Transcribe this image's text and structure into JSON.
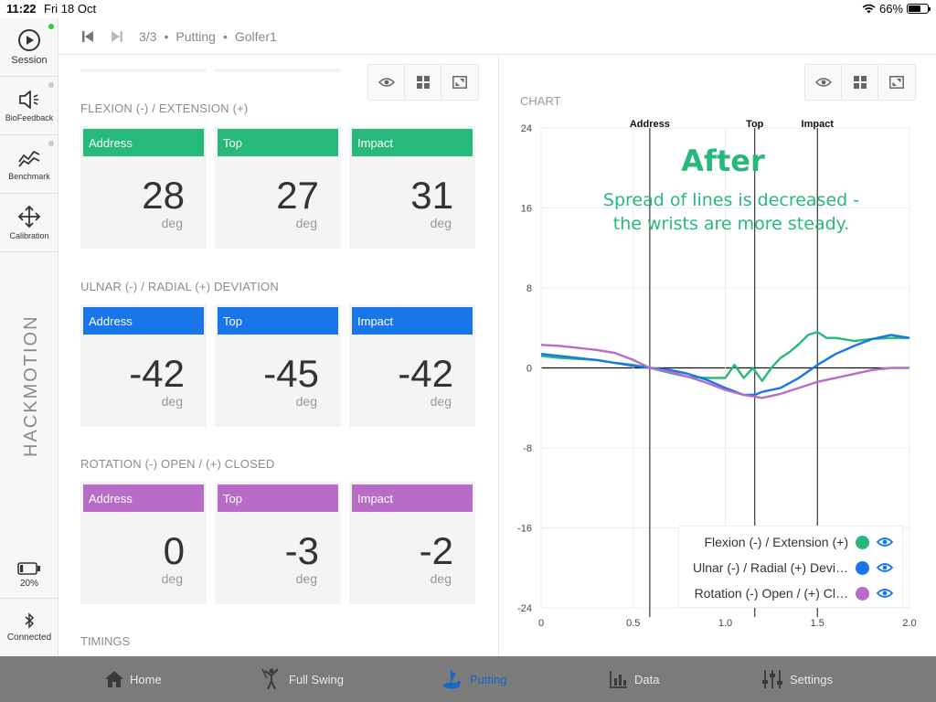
{
  "status_bar": {
    "time": "11:22",
    "date": "Fri 18 Oct",
    "battery": "66%",
    "battery_level": 0.66
  },
  "sidebar": {
    "items": [
      {
        "label": "Session",
        "icon": "play-circle-icon"
      },
      {
        "label": "BioFeedback",
        "icon": "speaker-icon"
      },
      {
        "label": "Benchmark",
        "icon": "trend-icon"
      },
      {
        "label": "Calibration",
        "icon": "move-arrows-icon"
      }
    ],
    "brand": "HACKMOTION",
    "sensor_battery": "20%",
    "sensor_battery_level": 0.2,
    "connection": "Connected"
  },
  "header": {
    "crumbs": [
      "3/3",
      "Putting",
      "Golfer1"
    ],
    "separator": "•"
  },
  "sections": [
    {
      "title": "FLEXION (-) / EXTENSION (+)",
      "color": "#27b97a",
      "cards": [
        {
          "label": "Address",
          "value": "28",
          "unit": "deg"
        },
        {
          "label": "Top",
          "value": "27",
          "unit": "deg"
        },
        {
          "label": "Impact",
          "value": "31",
          "unit": "deg"
        }
      ]
    },
    {
      "title": "ULNAR (-) / RADIAL (+) DEVIATION",
      "color": "#1976e8",
      "cards": [
        {
          "label": "Address",
          "value": "-42",
          "unit": "deg"
        },
        {
          "label": "Top",
          "value": "-45",
          "unit": "deg"
        },
        {
          "label": "Impact",
          "value": "-42",
          "unit": "deg"
        }
      ]
    },
    {
      "title": "ROTATION (-) OPEN / (+) CLOSED",
      "color": "#b86cc8",
      "cards": [
        {
          "label": "Address",
          "value": "0",
          "unit": "deg"
        },
        {
          "label": "Top",
          "value": "-3",
          "unit": "deg"
        },
        {
          "label": "Impact",
          "value": "-2",
          "unit": "deg"
        }
      ]
    }
  ],
  "timings_title": "TIMINGS",
  "chart_panel": {
    "title": "CHART"
  },
  "chart_data": {
    "type": "line",
    "xlim": [
      0,
      2.0
    ],
    "ylim": [
      -24,
      24
    ],
    "xticks": [
      0,
      0.5,
      1.0,
      1.5,
      2.0
    ],
    "xtick_labels": [
      "0",
      "0.5",
      "1.0",
      "1.5",
      "2.0"
    ],
    "yticks": [
      24,
      16,
      8,
      0,
      -8,
      -16,
      -24
    ],
    "markers": [
      {
        "label": "Address",
        "x": 0.59
      },
      {
        "label": "Top",
        "x": 1.16
      },
      {
        "label": "Impact",
        "x": 1.5
      }
    ],
    "annotation_title": "After",
    "annotation_text": [
      "Spread of lines is decreased -",
      "the wrists are more steady."
    ],
    "annotation_color": "#27b97a",
    "series": [
      {
        "name": "Flexion (-) / Extension (+)",
        "color": "#27b97a",
        "x": [
          0,
          0.1,
          0.2,
          0.3,
          0.4,
          0.5,
          0.59,
          0.7,
          0.8,
          0.9,
          1.0,
          1.05,
          1.1,
          1.15,
          1.2,
          1.25,
          1.3,
          1.35,
          1.4,
          1.45,
          1.5,
          1.55,
          1.6,
          1.7,
          1.8,
          1.9,
          2.0
        ],
        "y": [
          1.2,
          1.0,
          0.9,
          0.8,
          0.5,
          0.3,
          0.0,
          -0.5,
          -0.9,
          -1.0,
          -1.0,
          0.3,
          -1.0,
          0.0,
          -1.3,
          0.0,
          1.0,
          1.6,
          2.4,
          3.3,
          3.6,
          3.0,
          3.0,
          2.7,
          2.9,
          3.0,
          3.0
        ]
      },
      {
        "name": "Ulnar (-) / Radial (+) Deviation",
        "color": "#1976e8",
        "x": [
          0,
          0.1,
          0.2,
          0.3,
          0.4,
          0.5,
          0.59,
          0.7,
          0.8,
          0.9,
          1.0,
          1.1,
          1.16,
          1.2,
          1.3,
          1.4,
          1.5,
          1.6,
          1.7,
          1.8,
          1.9,
          2.0
        ],
        "y": [
          1.4,
          1.2,
          1.0,
          0.8,
          0.5,
          0.2,
          0.0,
          -0.2,
          -0.6,
          -1.2,
          -2.0,
          -2.7,
          -2.7,
          -2.4,
          -2.0,
          -1.0,
          0.3,
          1.4,
          2.2,
          2.9,
          3.3,
          3.0
        ]
      },
      {
        "name": "Rotation (-) Open / (+) Closed",
        "color": "#b86cc8",
        "x": [
          0,
          0.1,
          0.2,
          0.3,
          0.4,
          0.5,
          0.59,
          0.7,
          0.8,
          0.9,
          1.0,
          1.1,
          1.2,
          1.3,
          1.4,
          1.5,
          1.6,
          1.7,
          1.8,
          1.9,
          2.0
        ],
        "y": [
          2.3,
          2.2,
          2.0,
          1.8,
          1.5,
          0.8,
          0.0,
          -0.4,
          -0.9,
          -1.5,
          -2.2,
          -2.7,
          -3.0,
          -2.6,
          -2.0,
          -1.4,
          -1.0,
          -0.6,
          -0.2,
          0.0,
          0.0
        ]
      }
    ],
    "legend": [
      {
        "name": "Flexion (-) / Extension (+)",
        "color": "#27b97a"
      },
      {
        "name": "Ulnar (-) / Radial (+) Devi…",
        "color": "#1976e8"
      },
      {
        "name": "Rotation (-) Open / (+) Cl…",
        "color": "#b86cc8"
      }
    ],
    "legend_placement": "bottom-right",
    "grid": true
  },
  "tabs": [
    {
      "label": "Home",
      "icon": "home-icon",
      "active": false
    },
    {
      "label": "Full Swing",
      "icon": "golfer-swing-icon",
      "active": false
    },
    {
      "label": "Putting",
      "icon": "putting-icon",
      "active": true
    },
    {
      "label": "Data",
      "icon": "bar-chart-icon",
      "active": false
    },
    {
      "label": "Settings",
      "icon": "sliders-icon",
      "active": false
    }
  ],
  "colors": {
    "accent": "#1767c6",
    "tab_bar": "#7b7b7b",
    "flexion": "#27b97a",
    "ulnar": "#1976e8",
    "rotation": "#b86cc8"
  }
}
